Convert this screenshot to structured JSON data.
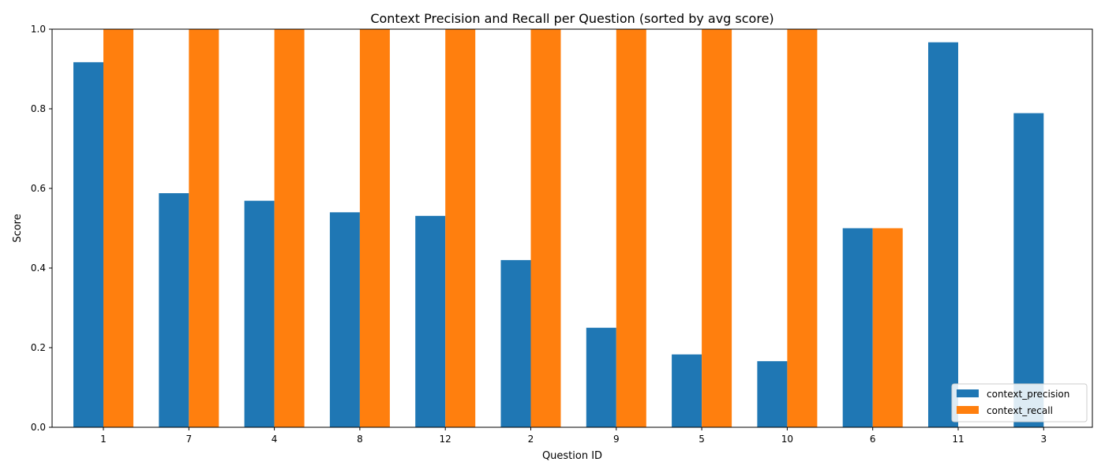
{
  "chart_data": {
    "type": "bar",
    "title": "Context Precision and Recall per Question (sorted by avg score)",
    "xlabel": "Question ID",
    "ylabel": "Score",
    "ylim": [
      0,
      1.0
    ],
    "yticks": [
      0.0,
      0.2,
      0.4,
      0.6,
      0.8,
      1.0
    ],
    "ytick_labels": [
      "0.0",
      "0.2",
      "0.4",
      "0.6",
      "0.8",
      "1.0"
    ],
    "categories": [
      "1",
      "7",
      "4",
      "8",
      "12",
      "2",
      "9",
      "5",
      "10",
      "6",
      "11",
      "3"
    ],
    "series": [
      {
        "name": "context_precision",
        "color": "#1f77b4",
        "values": [
          0.917,
          0.588,
          0.569,
          0.54,
          0.531,
          0.42,
          0.25,
          0.183,
          0.166,
          0.5,
          0.967,
          0.789
        ]
      },
      {
        "name": "context_recall",
        "color": "#ff7f0e",
        "values": [
          1.0,
          1.0,
          1.0,
          1.0,
          1.0,
          1.0,
          1.0,
          1.0,
          1.0,
          0.5,
          0.0,
          0.0
        ]
      }
    ],
    "legend_position": "lower-right",
    "grid": false
  }
}
